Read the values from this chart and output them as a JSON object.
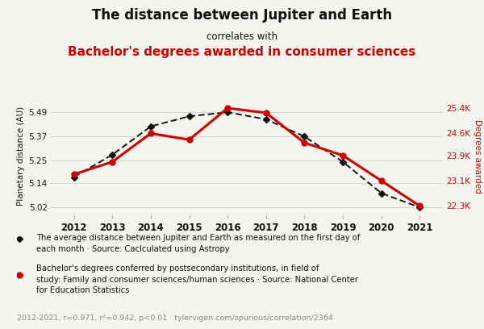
{
  "years": [
    2012,
    2013,
    2014,
    2015,
    2016,
    2017,
    2018,
    2019,
    2020,
    2021
  ],
  "jupiter_dist": [
    5.17,
    5.28,
    5.42,
    5.47,
    5.49,
    5.455,
    5.37,
    5.245,
    5.09,
    5.02
  ],
  "degrees": [
    23300,
    23700,
    24600,
    24400,
    25400,
    25250,
    24300,
    23900,
    23100,
    22300
  ],
  "title_line1": "The distance between Jupiter and Earth",
  "title_line2": "correlates with",
  "title_line3": "Bachelor's degrees awarded in consumer sciences",
  "ylabel_left": "Planetary distance (AU)",
  "ylabel_right": "Degrees awarded",
  "ylim_left": [
    4.98,
    5.565
  ],
  "ylim_right": [
    22000,
    25750
  ],
  "yticks_left": [
    5.02,
    5.14,
    5.25,
    5.37,
    5.49
  ],
  "yticks_right": [
    22300,
    23100,
    23900,
    24600,
    25400
  ],
  "ytick_labels_right": [
    "22.3K",
    "23.1K",
    "23.9K",
    "24.6K",
    "25.4K"
  ],
  "ytick_labels_left": [
    "5.02",
    "5.14",
    "5.25",
    "5.37",
    "5.49"
  ],
  "black_color": "#111111",
  "red_color": "#cc0000",
  "legend1_text": "The average distance between Jupiter and Earth as measured on the first day of\neach month · Source: Caclculated using Astropy",
  "legend2_text": "Bachelor's degrees conferred by postsecondary institutions, in field of\nstudy: Family and consumer sciences/human sciences · Source: National Center\nfor Education Statistics",
  "footer_text": "2012-2021, r=0.971, r²=0.942, p<0.01 · tylervigen.com/spurious/correlation/2364",
  "bg_color": "#f5f5f0"
}
